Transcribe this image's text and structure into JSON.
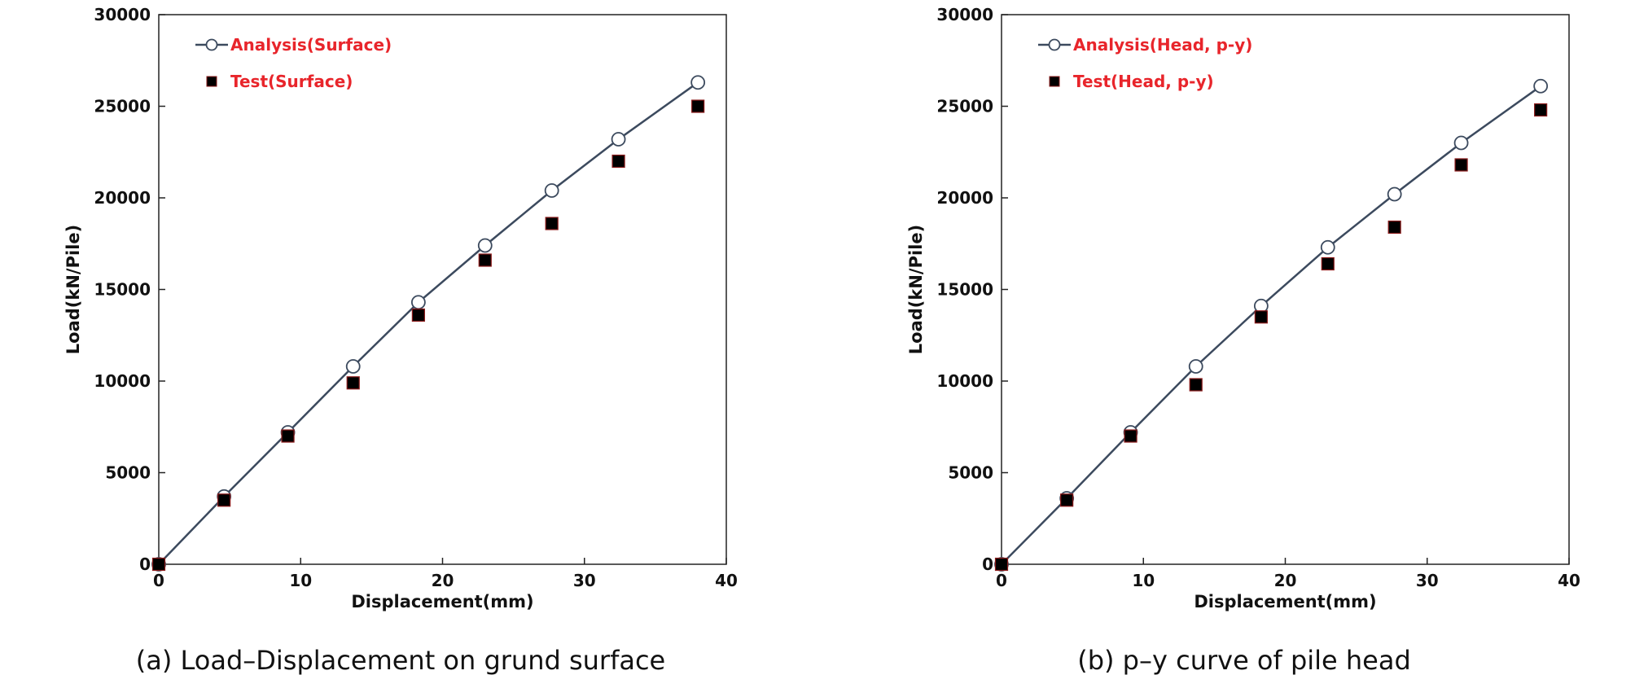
{
  "colors": {
    "line": "#3c4a5e",
    "legend_text": "#e8252b",
    "marker_fill": "#000000",
    "marker_edge": "#8b1a1a"
  },
  "chart_data": [
    {
      "type": "line",
      "caption": "(a) Load–Displacement on grund surface",
      "xlabel": "Displacement(mm)",
      "ylabel": "Load(kN/Pile)",
      "xlim": [
        0,
        40
      ],
      "ylim": [
        0,
        30000
      ],
      "xticks": [
        0,
        10,
        20,
        30,
        40
      ],
      "yticks": [
        0,
        5000,
        10000,
        15000,
        20000,
        25000,
        30000
      ],
      "grid": false,
      "legend_position": "top-left",
      "series": [
        {
          "name": "Analysis(Surface)",
          "marker": "open-circle",
          "line": true,
          "x": [
            0,
            4.6,
            9.1,
            13.7,
            18.3,
            23.0,
            27.7,
            32.4,
            38.0
          ],
          "y": [
            0,
            3700,
            7200,
            10800,
            14300,
            17400,
            20400,
            23200,
            26300
          ]
        },
        {
          "name": "Test(Surface)",
          "marker": "filled-square",
          "line": false,
          "x": [
            0,
            4.6,
            9.1,
            13.7,
            18.3,
            23.0,
            27.7,
            32.4,
            38.0
          ],
          "y": [
            0,
            3500,
            7000,
            9900,
            13600,
            16600,
            18600,
            22000,
            25000
          ]
        }
      ]
    },
    {
      "type": "line",
      "caption": "(b) p–y curve of pile head",
      "xlabel": "Displacement(mm)",
      "ylabel": "Load(kN/Pile)",
      "xlim": [
        0,
        40
      ],
      "ylim": [
        0,
        30000
      ],
      "xticks": [
        0,
        10,
        20,
        30,
        40
      ],
      "yticks": [
        0,
        5000,
        10000,
        15000,
        20000,
        25000,
        30000
      ],
      "grid": false,
      "legend_position": "top-left",
      "series": [
        {
          "name": "Analysis(Head, p-y)",
          "marker": "open-circle",
          "line": true,
          "x": [
            0,
            4.6,
            9.1,
            13.7,
            18.3,
            23.0,
            27.7,
            32.4,
            38.0
          ],
          "y": [
            0,
            3600,
            7200,
            10800,
            14100,
            17300,
            20200,
            23000,
            26100
          ]
        },
        {
          "name": "Test(Head, p-y)",
          "marker": "filled-square",
          "line": false,
          "x": [
            0,
            4.6,
            9.1,
            13.7,
            18.3,
            23.0,
            27.7,
            32.4,
            38.0
          ],
          "y": [
            0,
            3500,
            7000,
            9800,
            13500,
            16400,
            18400,
            21800,
            24800
          ]
        }
      ]
    }
  ]
}
